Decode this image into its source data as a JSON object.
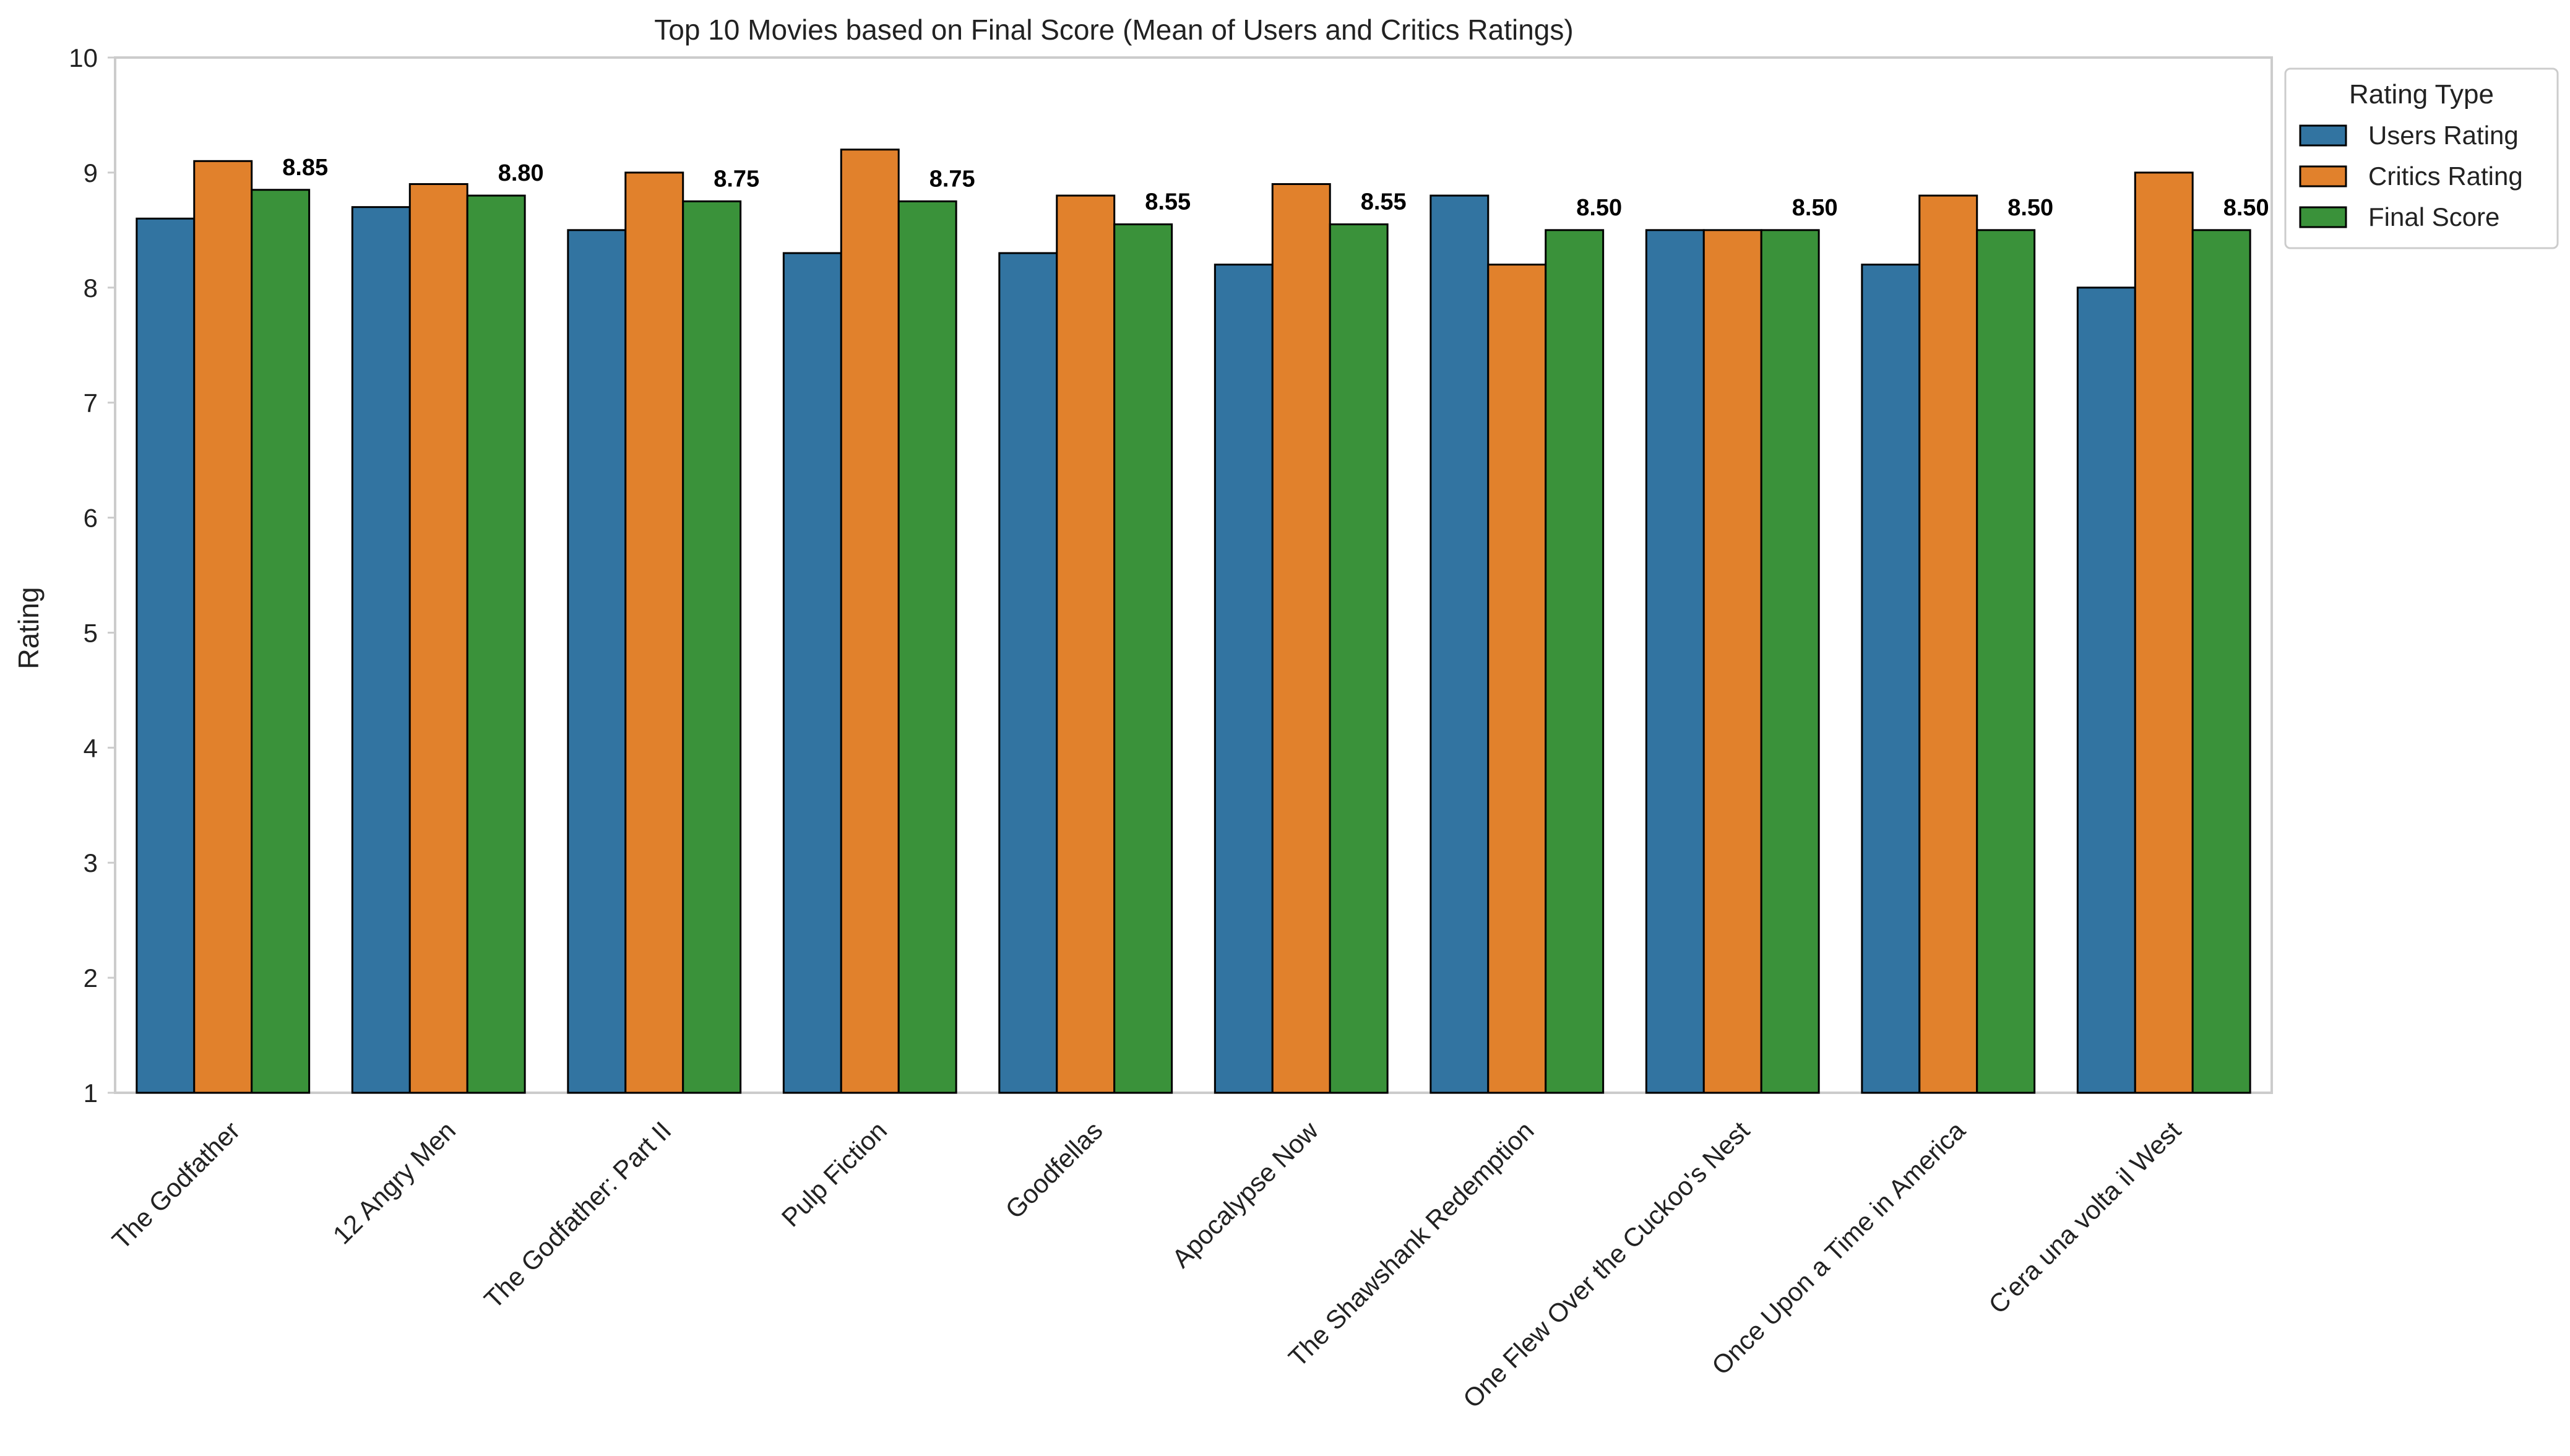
{
  "chart_data": {
    "type": "bar",
    "title": "Top 10 Movies based on Final Score (Mean of Users and Critics Ratings)",
    "xlabel": "",
    "ylabel": "Rating",
    "ylim": [
      1,
      10
    ],
    "yticks": [
      1,
      2,
      3,
      4,
      5,
      6,
      7,
      8,
      9,
      10
    ],
    "grid": false,
    "legend": {
      "title": "Rating Type",
      "placement": "outside-top-right"
    },
    "categories": [
      "The Godfather",
      "12 Angry Men",
      "The Godfather: Part II",
      "Pulp Fiction",
      "Goodfellas",
      "Apocalypse Now",
      "The Shawshank Redemption",
      "One Flew Over the Cuckoo's Nest",
      "Once Upon a Time in America",
      "C'era una volta il West"
    ],
    "series": [
      {
        "name": "Users Rating",
        "color": "#3274a1",
        "values": [
          8.6,
          8.7,
          8.5,
          8.3,
          8.3,
          8.2,
          8.8,
          8.5,
          8.2,
          8.0
        ]
      },
      {
        "name": "Critics Rating",
        "color": "#e1812c",
        "values": [
          9.1,
          8.9,
          9.0,
          9.2,
          8.8,
          8.9,
          8.2,
          8.5,
          8.8,
          9.0
        ]
      },
      {
        "name": "Final Score",
        "color": "#3a923a",
        "values": [
          8.85,
          8.8,
          8.75,
          8.75,
          8.55,
          8.55,
          8.5,
          8.5,
          8.5,
          8.5
        ]
      }
    ],
    "data_labels": [
      "8.85",
      "8.80",
      "8.75",
      "8.75",
      "8.55",
      "8.55",
      "8.50",
      "8.50",
      "8.50",
      "8.50"
    ]
  }
}
